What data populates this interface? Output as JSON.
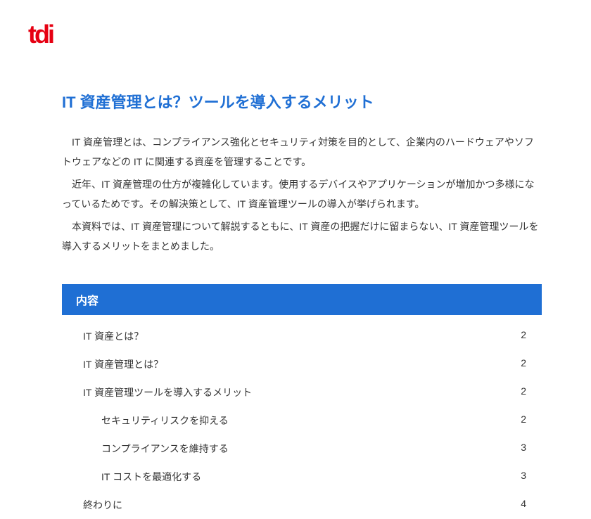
{
  "logo": "tdi",
  "title": "IT 資産管理とは？ツールを導入するメリット",
  "intro": {
    "p1": "IT 資産管理とは、コンプライアンス強化とセキュリティ対策を目的として、企業内のハードウェアやソフトウェアなどの IT に関連する資産を管理することです。",
    "p2": "近年、IT 資産管理の仕方が複雑化しています。使用するデバイスやアプリケーションが増加かつ多様になっているためです。その解決策として、IT 資産管理ツールの導入が挙げられます。",
    "p3": "本資料では、IT 資産管理について解説するともに、IT 資産の把握だけに留まらない、IT 資産管理ツールを導入するメリットをまとめました。"
  },
  "toc": {
    "header": "内容",
    "items": [
      {
        "label": "IT 資産とは？",
        "page": "2",
        "indent": false
      },
      {
        "label": "IT 資産管理とは？",
        "page": "2",
        "indent": false
      },
      {
        "label": "IT 資産管理ツールを導入するメリット",
        "page": "2",
        "indent": false
      },
      {
        "label": "セキュリティリスクを抑える",
        "page": "2",
        "indent": true
      },
      {
        "label": "コンプライアンスを維持する",
        "page": "3",
        "indent": true
      },
      {
        "label": "IT コストを最適化する",
        "page": "3",
        "indent": true
      },
      {
        "label": "終わりに",
        "page": "4",
        "indent": false
      }
    ]
  },
  "colors": {
    "accent_red": "#e60012",
    "accent_blue": "#1f6fd4",
    "text": "#333333",
    "background": "#ffffff"
  }
}
